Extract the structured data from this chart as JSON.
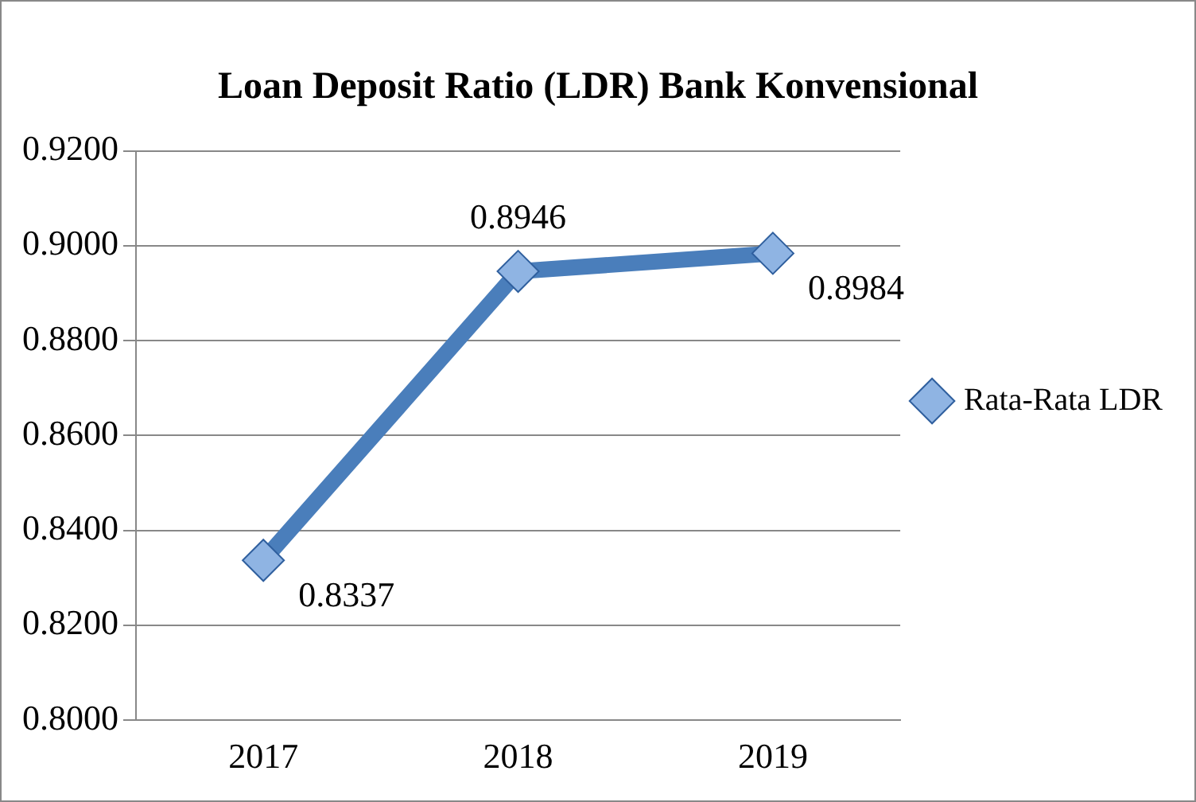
{
  "chart_data": {
    "type": "line",
    "title": "Loan Deposit Ratio (LDR) Bank Konvensional",
    "categories": [
      "2017",
      "2018",
      "2019"
    ],
    "series": [
      {
        "name": "Rata-Rata LDR",
        "color": "#4a7ebb",
        "values": [
          0.8337,
          0.8946,
          0.8984
        ]
      }
    ],
    "ylim": [
      0.8,
      0.92
    ],
    "yticks": [
      {
        "value": 0.8,
        "label": "0.8000"
      },
      {
        "value": 0.82,
        "label": "0.8200"
      },
      {
        "value": 0.84,
        "label": "0.8400"
      },
      {
        "value": 0.86,
        "label": "0.8600"
      },
      {
        "value": 0.88,
        "label": "0.8800"
      },
      {
        "value": 0.9,
        "label": "0.9000"
      },
      {
        "value": 0.92,
        "label": "0.9200"
      }
    ],
    "grid": "y",
    "legend": "right",
    "marker": "diamond",
    "line_style": "solid",
    "data_labels": true
  }
}
